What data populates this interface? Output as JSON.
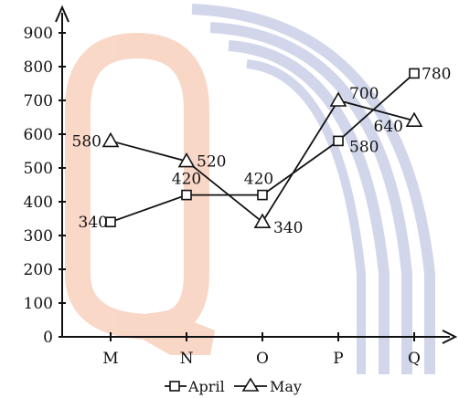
{
  "chart_data": {
    "type": "line",
    "title": "",
    "xlabel": "",
    "ylabel": "",
    "categories": [
      "M",
      "N",
      "O",
      "P",
      "Q"
    ],
    "ylim": [
      0,
      900
    ],
    "yticks": [
      "0",
      "100",
      "200",
      "300",
      "400",
      "500",
      "600",
      "700",
      "800",
      "900"
    ],
    "grid": false,
    "legend_position": "bottom-center",
    "series": [
      {
        "name": "April",
        "marker": "square",
        "values": [
          340,
          420,
          420,
          580,
          780
        ],
        "labels": [
          "340",
          "420",
          "420",
          "580",
          "780"
        ]
      },
      {
        "name": "May",
        "marker": "triangle",
        "values": [
          580,
          520,
          340,
          700,
          640
        ],
        "labels": [
          "580",
          "520",
          "340",
          "700",
          "640"
        ]
      }
    ],
    "colors": {
      "ink": "#111111",
      "watermark_orange": "#f6c9b0",
      "watermark_blue": "#b9c0e0"
    }
  }
}
